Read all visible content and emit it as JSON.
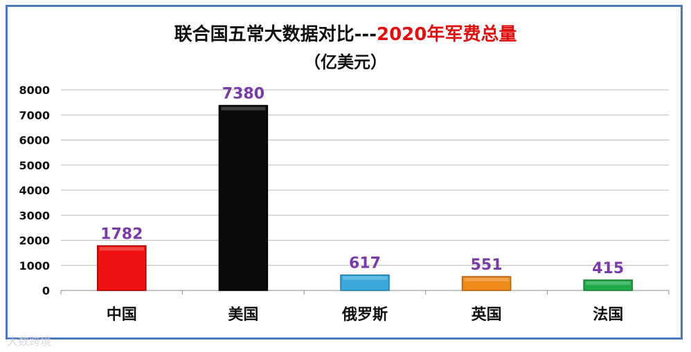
{
  "chart_data": {
    "type": "bar",
    "title_part1": "联合国五常大数据对比---",
    "title_part2": "2020年军费总量",
    "subtitle": "（亿美元）",
    "categories": [
      "中国",
      "美国",
      "俄罗斯",
      "英国",
      "法国"
    ],
    "values": [
      1782,
      7380,
      617,
      551,
      415
    ],
    "data_labels": [
      "1782",
      "7380",
      "617",
      "551",
      "415"
    ],
    "yticks": [
      "0",
      "1000",
      "2000",
      "3000",
      "4000",
      "5000",
      "6000",
      "7000",
      "8000"
    ],
    "ylim": [
      0,
      8000
    ],
    "grid": true,
    "legend": "none",
    "colors": {
      "bars": [
        "#ee1111",
        "#0a0a0a",
        "#3aa8d8",
        "#ee8a1a",
        "#1faa4a"
      ],
      "bar_edges": [
        "#a00000",
        "#000000",
        "#1e7aa8",
        "#b05e00",
        "#0e7a30"
      ],
      "title_black": "#111111",
      "title_red": "#e01010",
      "data_label": "#7a3aa8",
      "grid": "#b8b8b8",
      "frame": "#4a78c0"
    }
  },
  "watermark": "大数跨境"
}
